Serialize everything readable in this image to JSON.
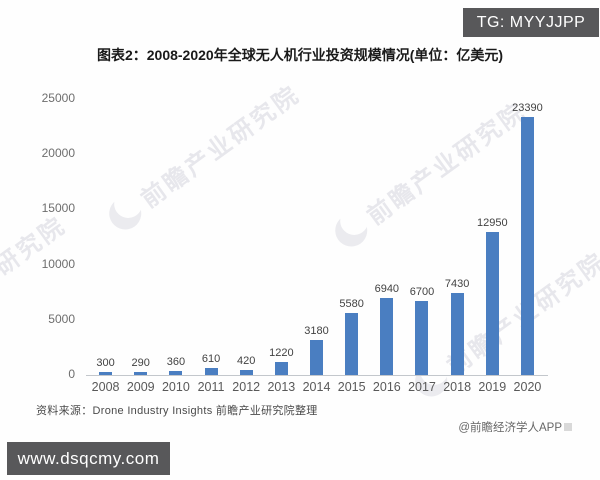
{
  "overlays": {
    "tg_badge": "TG: MYYJJPP",
    "site_badge": "www.dsqcmy.com"
  },
  "watermark": {
    "text": "前瞻产业研究院"
  },
  "footer": {
    "source": "资料来源：Drone Industry Insights 前瞻产业研究院整理",
    "credit": "@前瞻经济学人APP"
  },
  "chart_data": {
    "type": "bar",
    "title": "图表2：2008-2020年全球无人机行业投资规模情况(单位：亿美元)",
    "categories": [
      "2008",
      "2009",
      "2010",
      "2011",
      "2012",
      "2013",
      "2014",
      "2015",
      "2016",
      "2017",
      "2018",
      "2019",
      "2020"
    ],
    "values": [
      300,
      290,
      360,
      610,
      420,
      1220,
      3180,
      5580,
      6940,
      6700,
      7430,
      12950,
      23390
    ],
    "xlabel": "",
    "ylabel": "",
    "ylim": [
      0,
      25000
    ],
    "yticks": [
      0,
      5000,
      10000,
      15000,
      20000,
      25000
    ],
    "grid": false,
    "legend": false,
    "bar_color": "#4a7ec1",
    "unit": "亿美元"
  }
}
